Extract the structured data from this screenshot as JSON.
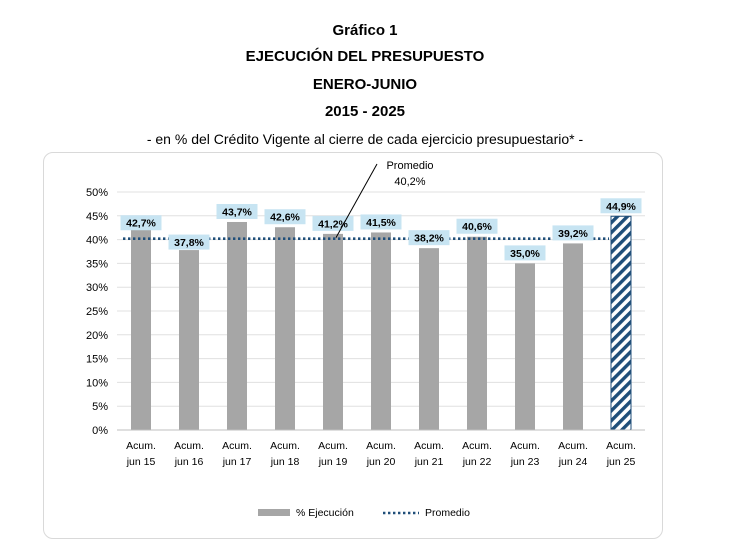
{
  "header": {
    "line1": "Gráfico 1",
    "line2": "EJECUCIÓN DEL PRESUPUESTO",
    "line3": "ENERO-JUNIO",
    "line4": "2015 - 2025",
    "subtitle": "- en % del Crédito Vigente al cierre de cada ejercicio presupuestario* -"
  },
  "chart_data": {
    "type": "bar",
    "categories": [
      [
        "Acum.",
        "jun 15"
      ],
      [
        "Acum.",
        "jun 16"
      ],
      [
        "Acum.",
        "jun 17"
      ],
      [
        "Acum.",
        "jun 18"
      ],
      [
        "Acum.",
        "jun 19"
      ],
      [
        "Acum.",
        "jun 20"
      ],
      [
        "Acum.",
        "jun 21"
      ],
      [
        "Acum.",
        "jun 22"
      ],
      [
        "Acum.",
        "jun 23"
      ],
      [
        "Acum.",
        "jun 24"
      ],
      [
        "Acum.",
        "jun 25"
      ]
    ],
    "series": [
      {
        "name": "% Ejecución",
        "values": [
          42.7,
          37.8,
          43.7,
          42.6,
          41.2,
          41.5,
          38.2,
          40.6,
          35.0,
          39.2,
          44.9
        ],
        "labels": [
          "42,7%",
          "37,8%",
          "43,7%",
          "42,6%",
          "41,2%",
          "41,5%",
          "38,2%",
          "40,6%",
          "35,0%",
          "39,2%",
          "44,9%"
        ]
      },
      {
        "name": "Promedio",
        "value": 40.2
      }
    ],
    "average_annotation": [
      "Promedio",
      "40,2%"
    ],
    "yticks": [
      "0%",
      "5%",
      "10%",
      "15%",
      "20%",
      "25%",
      "30%",
      "35%",
      "40%",
      "45%",
      "50%"
    ],
    "ylim": [
      0,
      50
    ],
    "legend_position": "bottom",
    "colors": {
      "bar": "#a6a6a6",
      "bar_last": "#1f4e79",
      "label_bg": "#c7e4f2",
      "average_line": "#1f4e79",
      "grid": "#e0e0e0"
    }
  }
}
